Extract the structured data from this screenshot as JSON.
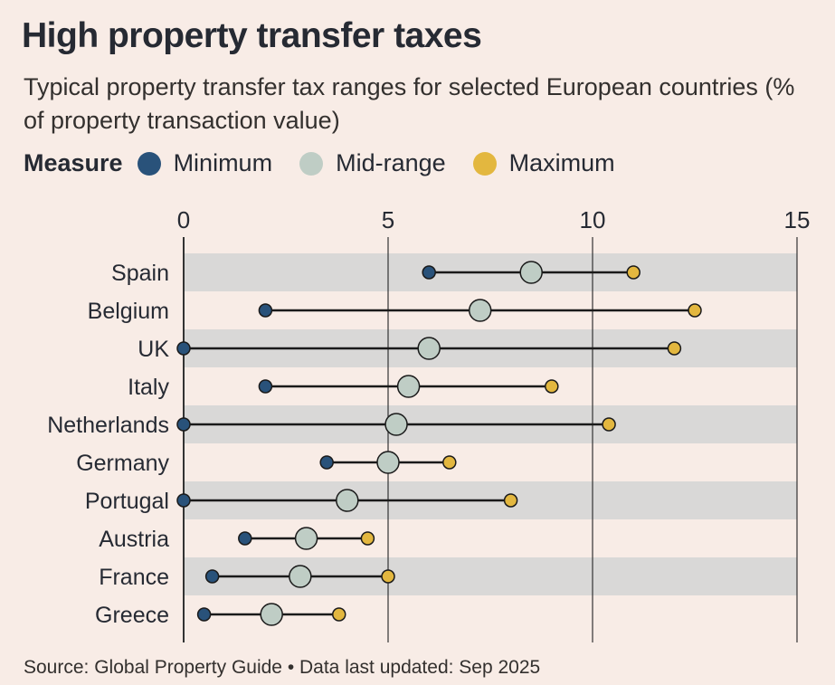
{
  "title": "High property transfer taxes",
  "subtitle": "Typical property transfer tax ranges for selected European countries (% of property transaction value)",
  "legend": {
    "title": "Measure",
    "items": [
      {
        "label": "Minimum",
        "color": "#29527a"
      },
      {
        "label": "Mid-range",
        "color": "#bfcdc5"
      },
      {
        "label": "Maximum",
        "color": "#e3b73f"
      }
    ]
  },
  "source": "Source: Global Property Guide • Data last updated: Sep 2025",
  "chart_data": {
    "type": "dumbbell",
    "xlim": [
      0,
      15
    ],
    "x_ticks": [
      0,
      5,
      10,
      15
    ],
    "categories": [
      "Spain",
      "Belgium",
      "UK",
      "Italy",
      "Netherlands",
      "Germany",
      "Portugal",
      "Austria",
      "France",
      "Greece"
    ],
    "series": [
      {
        "name": "Minimum",
        "values": [
          6,
          2,
          0,
          2,
          0,
          3.5,
          0,
          1.5,
          0.7,
          0.5
        ]
      },
      {
        "name": "Mid-range",
        "values": [
          8.5,
          7.25,
          6,
          5.5,
          5.2,
          5,
          4,
          3,
          2.85,
          2.15
        ]
      },
      {
        "name": "Maximum",
        "values": [
          11,
          12.5,
          12,
          9,
          10.4,
          6.5,
          8,
          4.5,
          5,
          3.8
        ]
      }
    ]
  }
}
